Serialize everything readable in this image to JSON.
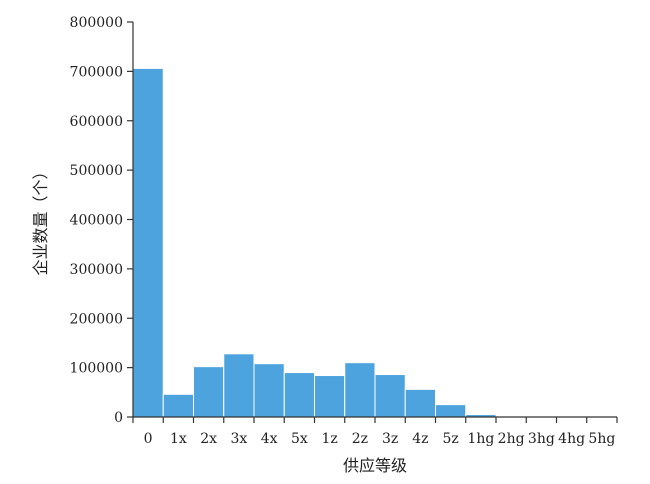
{
  "chart_data": {
    "type": "bar",
    "categories": [
      "0",
      "1x",
      "2x",
      "3x",
      "4x",
      "5x",
      "1z",
      "2z",
      "3z",
      "4z",
      "5z",
      "1hg",
      "2hg",
      "3hg",
      "4hg",
      "5hg"
    ],
    "values": [
      706000,
      46000,
      102000,
      128000,
      108000,
      90000,
      84000,
      110000,
      86000,
      56000,
      25000,
      5000,
      2000,
      800,
      400,
      200
    ],
    "xlabel": "供应等级",
    "ylabel": "企业数量（个）",
    "ylim": [
      0,
      800000
    ],
    "yticks": [
      0,
      100000,
      200000,
      300000,
      400000,
      500000,
      600000,
      700000,
      800000
    ],
    "grid": false,
    "colors": {
      "bar": "#4da3dd"
    }
  }
}
